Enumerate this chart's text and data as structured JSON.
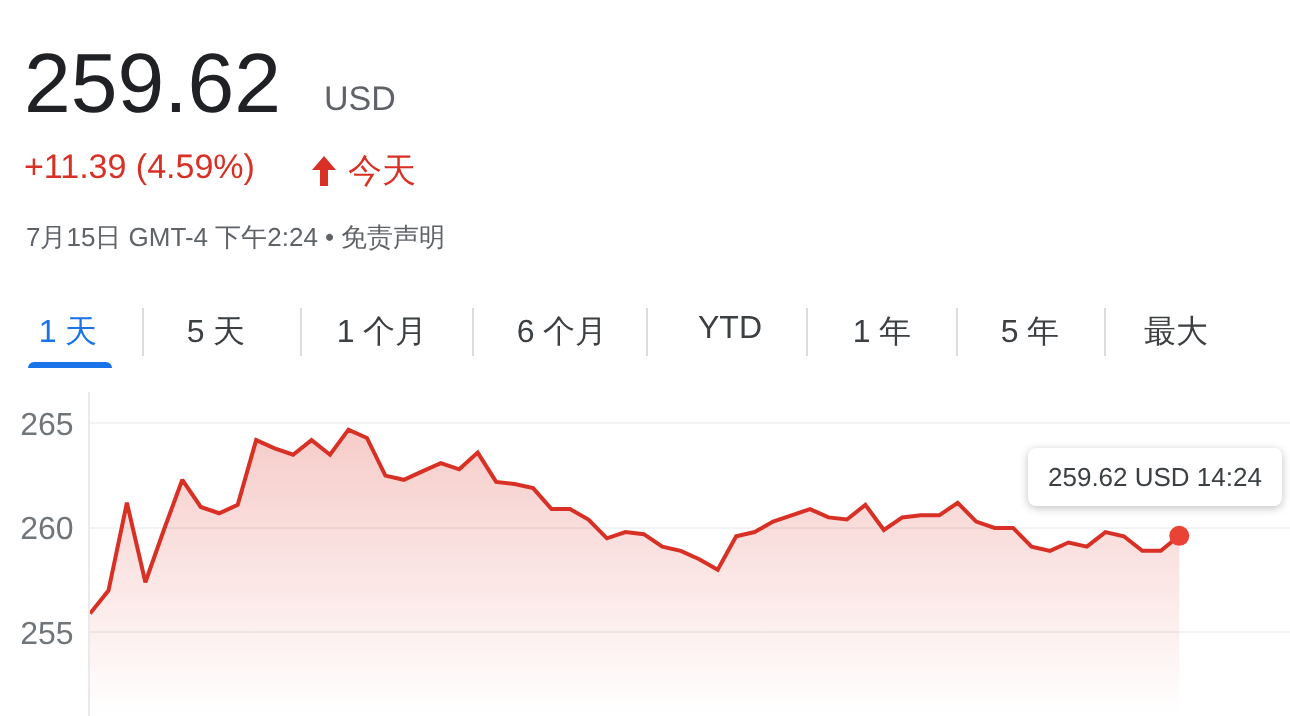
{
  "chart_data": {
    "type": "area",
    "title": "259.62",
    "subtitle": "+11.39 (4.59%)",
    "annotations": [
      "USD",
      "今天",
      "7月15日 GMT-4 下午2:24 • 免责声明",
      "1 天",
      "5 天",
      "1 个月",
      "6 个月",
      "YTD",
      "1 年",
      "5 年",
      "最大",
      "259.62 USD  14:24"
    ],
    "categories": [
      null,
      null,
      null,
      null,
      null,
      null,
      null,
      null,
      null,
      null,
      null,
      null,
      null,
      null,
      null,
      null,
      null,
      null,
      null,
      null,
      null,
      null,
      null,
      null,
      null,
      null,
      null,
      null,
      null,
      null,
      null,
      null,
      null,
      null,
      null,
      null,
      null,
      null,
      null,
      null,
      null,
      null,
      null,
      null,
      null,
      null,
      null,
      null,
      null,
      null,
      null,
      null,
      null,
      null,
      null,
      null,
      null,
      null,
      null,
      null,
      null,
      null,
      null,
      null,
      null,
      null
    ],
    "series": [
      {
        "color": "#d93025",
        "values": [
          255.9,
          257.0,
          261.2,
          257.4,
          259.9,
          262.3,
          261.0,
          260.7,
          261.1,
          264.2,
          263.8,
          263.5,
          264.2,
          263.5,
          264.7,
          264.3,
          262.5,
          262.3,
          262.7,
          263.1,
          262.8,
          263.6,
          262.2,
          262.1,
          261.9,
          260.9,
          260.9,
          260.4,
          259.5,
          259.8,
          259.7,
          259.1,
          258.9,
          258.5,
          258.0,
          259.6,
          259.8,
          260.3,
          260.6,
          260.9,
          260.5,
          260.4,
          261.1,
          259.9,
          260.5,
          260.6,
          260.6,
          261.2,
          260.3,
          260.0,
          260.0,
          259.1,
          258.9,
          259.3,
          259.1,
          259.8,
          259.6,
          258.9,
          258.9,
          259.62,
          null,
          null,
          null,
          null,
          null,
          null
        ]
      },
      {
        "type": "scatter",
        "color": "#ea4335",
        "values": [
          null,
          null,
          null,
          null,
          null,
          null,
          null,
          null,
          null,
          null,
          null,
          null,
          null,
          null,
          null,
          null,
          null,
          null,
          null,
          null,
          null,
          null,
          null,
          null,
          null,
          null,
          null,
          null,
          null,
          null,
          null,
          null,
          null,
          null,
          null,
          null,
          null,
          null,
          null,
          null,
          null,
          null,
          null,
          null,
          null,
          null,
          null,
          null,
          null,
          null,
          null,
          null,
          null,
          null,
          null,
          null,
          null,
          null,
          null,
          259.62,
          null,
          null,
          null,
          null,
          null,
          null
        ]
      }
    ],
    "ylim": [
      251,
      266.5
    ],
    "yticks": [
      255,
      260,
      265
    ],
    "grid": "y",
    "tick_labels": "y"
  }
}
